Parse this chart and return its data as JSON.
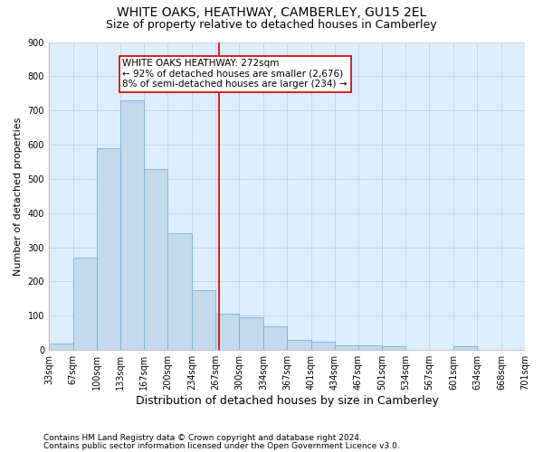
{
  "title": "WHITE OAKS, HEATHWAY, CAMBERLEY, GU15 2EL",
  "subtitle": "Size of property relative to detached houses in Camberley",
  "xlabel": "Distribution of detached houses by size in Camberley",
  "ylabel": "Number of detached properties",
  "footnote1": "Contains HM Land Registry data © Crown copyright and database right 2024.",
  "footnote2": "Contains public sector information licensed under the Open Government Licence v3.0.",
  "annotation_title": "WHITE OAKS HEATHWAY: 272sqm",
  "annotation_line1": "← 92% of detached houses are smaller (2,676)",
  "annotation_line2": "8% of semi-detached houses are larger (234) →",
  "bin_edges": [
    33,
    67,
    100,
    133,
    167,
    200,
    234,
    267,
    300,
    334,
    367,
    401,
    434,
    467,
    501,
    534,
    567,
    601,
    634,
    668,
    701
  ],
  "bar_heights": [
    20,
    270,
    590,
    730,
    530,
    340,
    175,
    105,
    95,
    70,
    30,
    25,
    13,
    13,
    12,
    0,
    0,
    10,
    0,
    0
  ],
  "bar_color": "#c5d9ed",
  "bar_edge_color": "#7bafd4",
  "vline_color": "#cc0000",
  "vline_x": 272,
  "ylim": [
    0,
    900
  ],
  "yticks": [
    0,
    100,
    200,
    300,
    400,
    500,
    600,
    700,
    800,
    900
  ],
  "grid_color": "#bbccdd",
  "bg_color": "#ddeeff",
  "title_fontsize": 10,
  "subtitle_fontsize": 9,
  "xlabel_fontsize": 9,
  "ylabel_fontsize": 8,
  "tick_fontsize": 7,
  "annot_fontsize": 7.5,
  "footnote_fontsize": 6.5
}
